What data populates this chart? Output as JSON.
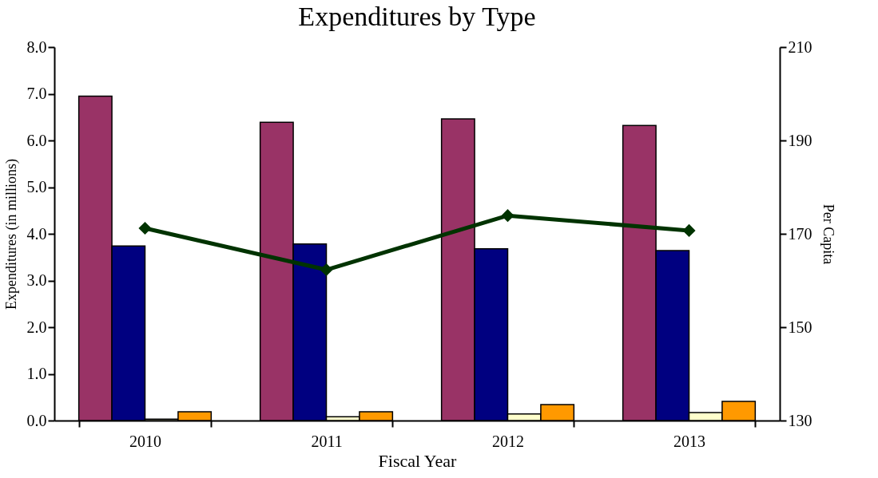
{
  "chart_data": {
    "type": "bar",
    "title": "Expenditures by Type",
    "xlabel": "Fiscal Year",
    "ylabel": "Expenditures (in millions)",
    "y2label": "Per Capita",
    "categories": [
      "2010",
      "2011",
      "2012",
      "2013"
    ],
    "series": [
      {
        "color": "#993366",
        "values": [
          6.95,
          6.39,
          6.46,
          6.32
        ]
      },
      {
        "color": "#000080",
        "values": [
          3.74,
          3.78,
          3.68,
          3.64
        ]
      },
      {
        "color": "#ffffcc",
        "values": [
          0.03,
          0.08,
          0.14,
          0.17
        ]
      },
      {
        "color": "#ff9900",
        "values": [
          0.19,
          0.19,
          0.34,
          0.41
        ]
      },
      {
        "type": "line",
        "axis": "y2",
        "color": "#003300",
        "marker": "diamond",
        "values": [
          171.2,
          162.3,
          173.9,
          170.7
        ]
      }
    ],
    "ylim": [
      0,
      8
    ],
    "yticks": [
      {
        "value": 0,
        "label": "0.0"
      },
      {
        "value": 1,
        "label": "1.0"
      },
      {
        "value": 2,
        "label": "2.0"
      },
      {
        "value": 3,
        "label": "3.0"
      },
      {
        "value": 4,
        "label": "4.0"
      },
      {
        "value": 5,
        "label": "5.0"
      },
      {
        "value": 6,
        "label": "6.0"
      },
      {
        "value": 7,
        "label": "7.0"
      },
      {
        "value": 8,
        "label": "8.0"
      }
    ],
    "y2lim": [
      130,
      210
    ],
    "y2ticks": [
      130,
      150,
      170,
      190,
      210
    ],
    "grid": false,
    "legend": false
  }
}
